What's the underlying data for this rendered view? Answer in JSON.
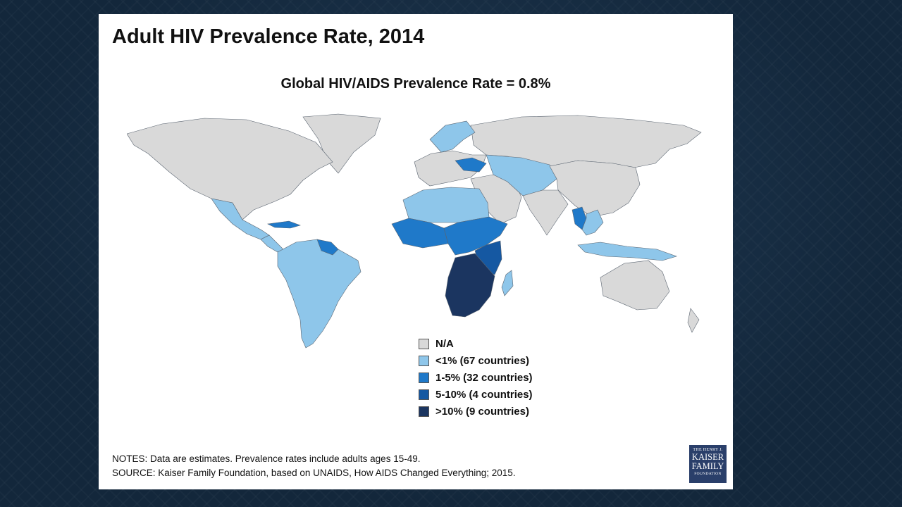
{
  "title": "Adult HIV Prevalence Rate, 2014",
  "subtitle": "Global HIV/AIDS Prevalence Rate = 0.8%",
  "legend": [
    {
      "label": "N/A",
      "color": "#d9d9d9"
    },
    {
      "label": "<1% (67 countries)",
      "color": "#8ec6ea"
    },
    {
      "label": "1-5% (32 countries)",
      "color": "#1f79c9"
    },
    {
      "label": "5-10% (4 countries)",
      "color": "#1558a2"
    },
    {
      "label": ">10% (9 countries)",
      "color": "#1b3560"
    }
  ],
  "notes": {
    "line1": "NOTES: Data are estimates. Prevalence rates include adults ages 15-49.",
    "line2": "SOURCE: Kaiser Family Foundation, based on UNAIDS, How AIDS Changed Everything; 2015."
  },
  "logo": {
    "line1": "THE HENRY J.",
    "line2": "KAISER",
    "line3": "FAMILY",
    "line4": "FOUNDATION"
  },
  "map_data": {
    "type": "choropleth",
    "regions": [
      {
        "name": "North America",
        "category": "N/A"
      },
      {
        "name": "Greenland",
        "category": "N/A"
      },
      {
        "name": "Mexico",
        "category": "<1% (67 countries)"
      },
      {
        "name": "Central America",
        "category": "<1% (67 countries)"
      },
      {
        "name": "Caribbean",
        "category": "1-5% (32 countries)"
      },
      {
        "name": "South America",
        "category": "<1% (67 countries)"
      },
      {
        "name": "Guyana / Suriname",
        "category": "1-5% (32 countries)"
      },
      {
        "name": "Western Europe",
        "category": "N/A"
      },
      {
        "name": "Scandinavia",
        "category": "<1% (67 countries)"
      },
      {
        "name": "Ukraine",
        "category": "1-5% (32 countries)"
      },
      {
        "name": "Russia",
        "category": "N/A"
      },
      {
        "name": "Central Asia",
        "category": "<1% (67 countries)"
      },
      {
        "name": "North Africa",
        "category": "<1% (67 countries)"
      },
      {
        "name": "West Africa",
        "category": "1-5% (32 countries)"
      },
      {
        "name": "Central / East Africa",
        "category": "1-5% (32 countries)"
      },
      {
        "name": "East Africa",
        "category": "5-10% (4 countries)"
      },
      {
        "name": "Southern Africa",
        "category": ">10% (9 countries)"
      },
      {
        "name": "Madagascar",
        "category": "<1% (67 countries)"
      },
      {
        "name": "Middle East",
        "category": "N/A"
      },
      {
        "name": "India",
        "category": "N/A"
      },
      {
        "name": "China",
        "category": "N/A"
      },
      {
        "name": "Southeast Asia",
        "category": "<1% (67 countries)"
      },
      {
        "name": "Thailand",
        "category": "1-5% (32 countries)"
      },
      {
        "name": "Indonesia",
        "category": "<1% (67 countries)"
      },
      {
        "name": "Australia",
        "category": "N/A"
      },
      {
        "name": "New Zealand",
        "category": "N/A"
      }
    ]
  }
}
